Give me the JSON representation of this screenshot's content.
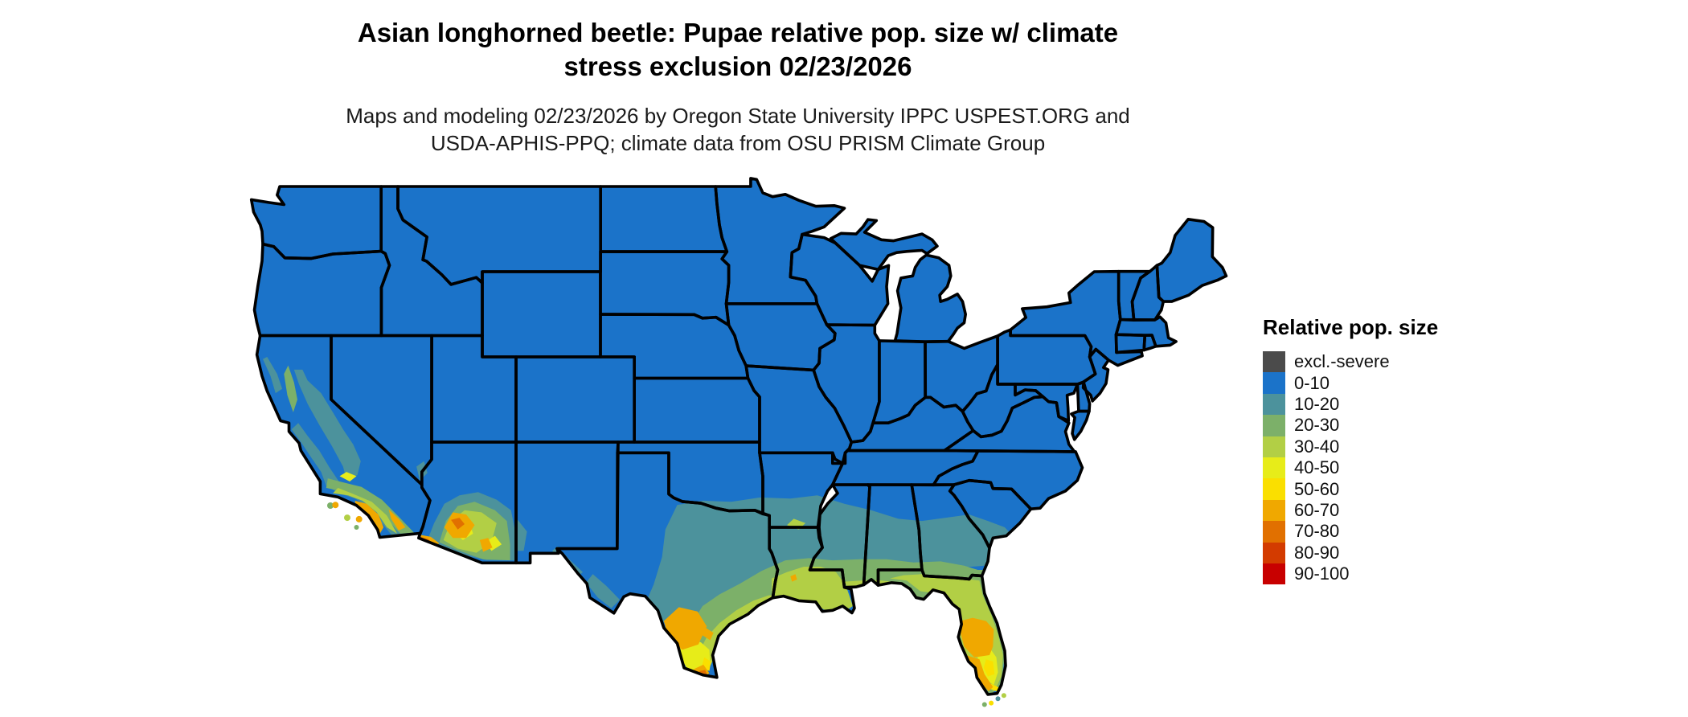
{
  "title": {
    "line1": "Asian longhorned beetle: Pupae relative pop. size w/ climate",
    "line2": "stress exclusion 02/23/2026"
  },
  "subtitle": {
    "line1": "Maps and modeling 02/23/2026 by Oregon State University IPPC USPEST.ORG and",
    "line2": "USDA-APHIS-PPQ; climate data from OSU PRISM Climate Group"
  },
  "legend": {
    "title": "Relative pop. size",
    "items": [
      {
        "label": "excl.-severe",
        "color": "#4B4B4B"
      },
      {
        "label": "0-10",
        "color": "#1B73C9"
      },
      {
        "label": "10-20",
        "color": "#4C929C"
      },
      {
        "label": "20-30",
        "color": "#7CB069"
      },
      {
        "label": "30-40",
        "color": "#B2CF45"
      },
      {
        "label": "40-50",
        "color": "#E7EC19"
      },
      {
        "label": "50-60",
        "color": "#FADF00"
      },
      {
        "label": "60-70",
        "color": "#F0A800"
      },
      {
        "label": "70-80",
        "color": "#E17000"
      },
      {
        "label": "80-90",
        "color": "#D33B00"
      },
      {
        "label": "90-100",
        "color": "#C80000"
      }
    ]
  },
  "map_data": {
    "type": "choropleth",
    "region": "Contiguous United States",
    "variable": "Relative population size (%), Asian longhorned beetle pupae, with climate stress exclusion",
    "date_shown": "02/23/2026",
    "border_color": "#000000",
    "regions_summary": [
      {
        "area": "Most of the contiguous U.S. (north, west interior, midwest, northeast)",
        "bin": "0-10"
      },
      {
        "area": "Central/east Texas, southern Oklahoma fringe, southern Arkansas, central Mississippi, Alabama and Georgia, coastal South Carolina, interior southern Arizona ring, California coast ranges and Sierra foothills",
        "bin": "10-20"
      },
      {
        "area": "Gulf coastal plain from Texas through the Florida panhandle, north Florida, southern Louisiana, south-central Texas, southern Arizona",
        "bin": "20-40"
      },
      {
        "area": "South Texas coastal plain, central-south Florida, southern Arizona patches, southern California coast",
        "bin": "40-60"
      },
      {
        "area": "Rio Grande valley and San Antonio-Laredo Texas, central Florida, Phoenix and Yuma Arizona, Los Angeles-San Diego coastal strip",
        "bin": "60-80"
      },
      {
        "area": "None visible on map",
        "bin": "80-100"
      }
    ]
  }
}
